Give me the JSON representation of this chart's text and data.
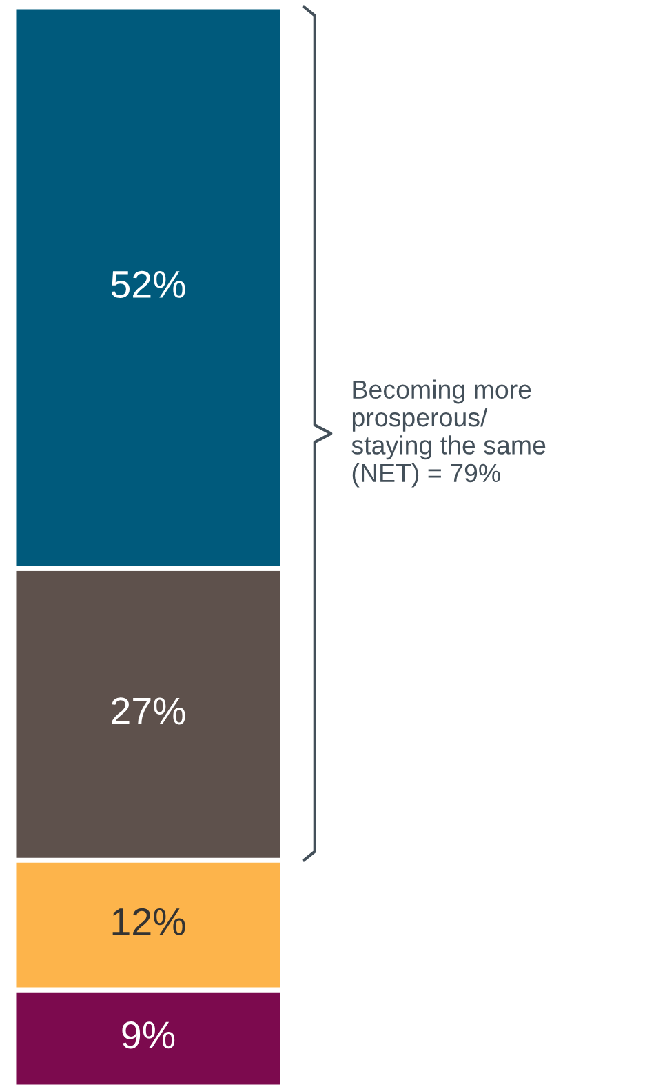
{
  "chart_data": {
    "type": "bar",
    "stacked": true,
    "categories": [
      null
    ],
    "series": [
      {
        "color": "#7c0a4e",
        "values": [
          9
        ],
        "value_labels": [
          "9%"
        ]
      },
      {
        "color": "#fdb44b",
        "values": [
          12
        ],
        "value_labels": [
          "12%"
        ]
      },
      {
        "color": "#5e514c",
        "values": [
          27
        ],
        "value_labels": [
          "27%"
        ]
      },
      {
        "color": "#005a7c",
        "values": [
          52
        ],
        "value_labels": [
          "52%"
        ]
      }
    ],
    "annotations": [
      "Becoming more\nprosperous/\nstaying the same\n(NET) = 79%"
    ]
  }
}
